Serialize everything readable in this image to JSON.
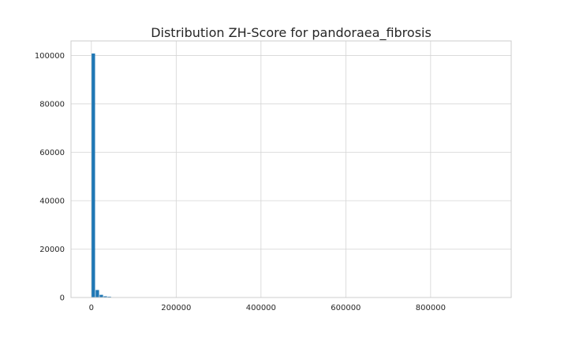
{
  "chart_data": {
    "type": "bar",
    "title": "Distribution ZH-Score for pandoraea_fibrosis",
    "xlabel": "",
    "ylabel": "",
    "xlim": [
      -48000,
      990000
    ],
    "ylim": [
      0,
      106000
    ],
    "grid": true,
    "bin_width": 9400,
    "bins": [
      {
        "x0": 0,
        "x1": 9400,
        "count": 100800
      },
      {
        "x0": 9400,
        "x1": 18800,
        "count": 3100
      },
      {
        "x0": 18800,
        "x1": 28200,
        "count": 1100
      },
      {
        "x0": 28200,
        "x1": 37600,
        "count": 500
      },
      {
        "x0": 37600,
        "x1": 47000,
        "count": 350
      },
      {
        "x0": 47000,
        "x1": 56400,
        "count": 150
      },
      {
        "x0": 56400,
        "x1": 65800,
        "count": 80
      },
      {
        "x0": 65800,
        "x1": 75200,
        "count": 50
      },
      {
        "x0": 75200,
        "x1": 84600,
        "count": 30
      },
      {
        "x0": 84600,
        "x1": 94000,
        "count": 20
      }
    ],
    "x_ticks": [
      {
        "value": 0,
        "label": "0"
      },
      {
        "value": 200000,
        "label": "200000"
      },
      {
        "value": 400000,
        "label": "400000"
      },
      {
        "value": 600000,
        "label": "600000"
      },
      {
        "value": 800000,
        "label": "800000"
      }
    ],
    "y_ticks": [
      {
        "value": 0,
        "label": "0"
      },
      {
        "value": 20000,
        "label": "20000"
      },
      {
        "value": 40000,
        "label": "40000"
      },
      {
        "value": 60000,
        "label": "60000"
      },
      {
        "value": 80000,
        "label": "80000"
      },
      {
        "value": 100000,
        "label": "100000"
      }
    ],
    "colors": {
      "bar": "#1f77b4",
      "grid": "#d4d4d4",
      "spine": "#cccccc",
      "text": "#262626",
      "background": "#ffffff"
    }
  }
}
